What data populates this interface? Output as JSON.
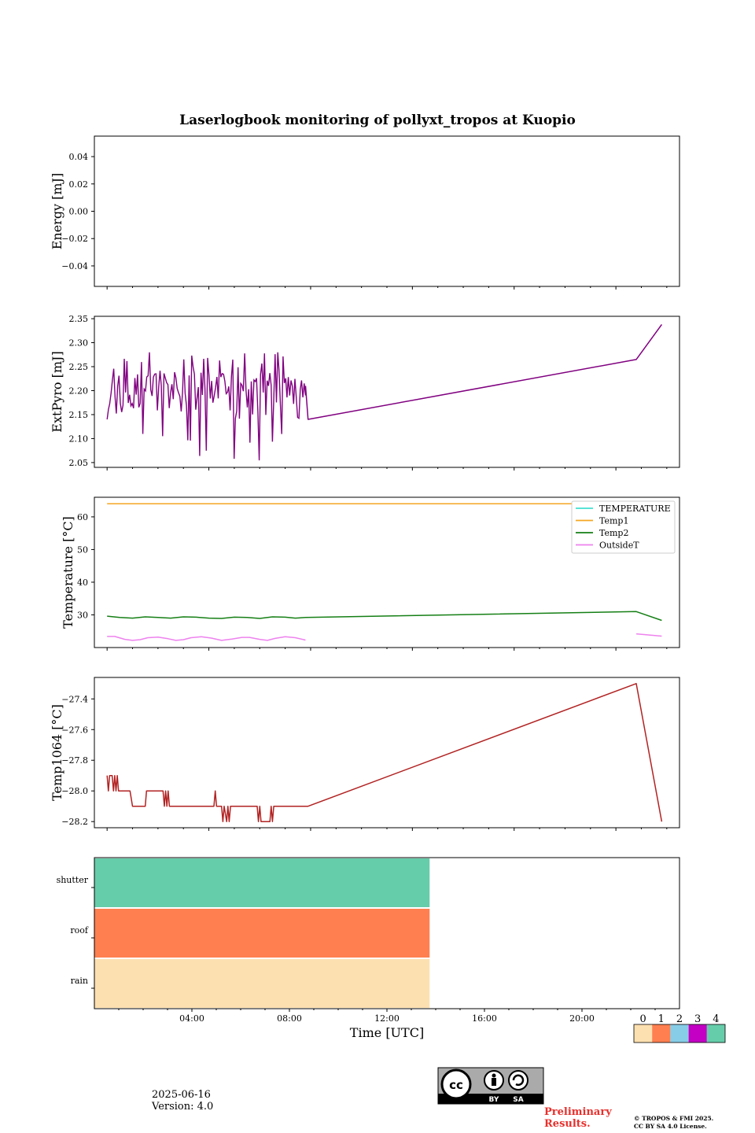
{
  "title": "Laserlogbook monitoring of pollyxt_tropos at Kuopio",
  "footer": {
    "date": "2025-06-16",
    "version": "Version: 4.0",
    "preliminary": [
      "Preliminary",
      "Results."
    ],
    "copyright": [
      "© TROPOS & FMI 2025.",
      "CC BY SA 4.0 License."
    ],
    "license_badge": {
      "labels": [
        "BY",
        "SA"
      ],
      "icon": "cc-by-sa-icon"
    }
  },
  "colorbar": {
    "ticks": [
      "0",
      "1",
      "2",
      "3",
      "4"
    ],
    "colors": [
      "#fde0b0",
      "#ff7f50",
      "#87cde8",
      "#c300c3",
      "#66cdaa"
    ]
  },
  "chart_data": [
    {
      "type": "line",
      "ylabel": "Energy [mJ]",
      "ylim": [
        -0.055,
        0.055
      ],
      "yticks": [
        -0.04,
        -0.02,
        0.0,
        0.02,
        0.04
      ],
      "ytick_labels": [
        "−0.04",
        "−0.02",
        "0.00",
        "0.02",
        "0.04"
      ],
      "series": []
    },
    {
      "type": "line",
      "ylabel": "ExtPyro [mJ]",
      "ylim": [
        2.04,
        2.355
      ],
      "yticks": [
        2.05,
        2.1,
        2.15,
        2.2,
        2.25,
        2.3,
        2.35
      ],
      "ytick_labels": [
        "2.05",
        "2.10",
        "2.15",
        "2.20",
        "2.25",
        "2.30",
        "2.35"
      ],
      "series": [
        {
          "color": "#800080",
          "noisy_segment": {
            "x_range": [
              1.0,
              8.8
            ],
            "y_range": [
              2.05,
              2.28
            ],
            "typical": 2.19
          },
          "points": [
            [
              8.8,
              2.21
            ],
            [
              8.9,
              2.14
            ],
            [
              21.8,
              2.265
            ],
            [
              22.8,
              2.338
            ]
          ]
        }
      ]
    },
    {
      "type": "line",
      "ylabel": "Temperature [°C]",
      "ylim": [
        20,
        66
      ],
      "yticks": [
        30,
        40,
        50,
        60
      ],
      "ytick_labels": [
        "30",
        "40",
        "50",
        "60"
      ],
      "legend_position": "top-right",
      "series": [
        {
          "name": "TEMPERATURE",
          "color": "#40e0d0",
          "points": []
        },
        {
          "name": "Temp1",
          "color": "#f5a623",
          "points": [
            [
              1.0,
              64.0
            ],
            [
              22.8,
              64.0
            ]
          ]
        },
        {
          "name": "Temp2",
          "color": "#157f15",
          "points": [
            [
              1.0,
              29.6
            ],
            [
              1.5,
              29.2
            ],
            [
              2.0,
              29.0
            ],
            [
              2.5,
              29.4
            ],
            [
              3.0,
              29.2
            ],
            [
              3.5,
              29.0
            ],
            [
              4.0,
              29.4
            ],
            [
              4.5,
              29.3
            ],
            [
              5.0,
              29.0
            ],
            [
              5.5,
              28.9
            ],
            [
              6.0,
              29.3
            ],
            [
              6.5,
              29.2
            ],
            [
              7.0,
              28.9
            ],
            [
              7.5,
              29.4
            ],
            [
              8.0,
              29.3
            ],
            [
              8.4,
              29.0
            ],
            [
              8.8,
              29.2
            ],
            [
              21.8,
              31.0
            ],
            [
              22.8,
              28.3
            ]
          ]
        },
        {
          "name": "OutsideT",
          "color": "#ee82ee",
          "segments": [
            [
              [
                1.0,
                23.4
              ],
              [
                1.3,
                23.4
              ],
              [
                1.7,
                22.5
              ],
              [
                2.0,
                22.2
              ],
              [
                2.3,
                22.4
              ],
              [
                2.6,
                23.0
              ],
              [
                3.0,
                23.2
              ],
              [
                3.4,
                22.7
              ],
              [
                3.7,
                22.2
              ],
              [
                4.0,
                22.4
              ],
              [
                4.3,
                23.0
              ],
              [
                4.7,
                23.3
              ],
              [
                5.1,
                22.9
              ],
              [
                5.5,
                22.2
              ],
              [
                5.9,
                22.6
              ],
              [
                6.3,
                23.1
              ],
              [
                6.6,
                23.1
              ],
              [
                7.0,
                22.5
              ],
              [
                7.3,
                22.2
              ],
              [
                7.6,
                22.8
              ],
              [
                8.0,
                23.3
              ],
              [
                8.4,
                23.0
              ],
              [
                8.8,
                22.3
              ]
            ],
            [
              [
                21.8,
                24.2
              ],
              [
                22.8,
                23.5
              ]
            ]
          ]
        }
      ]
    },
    {
      "type": "line",
      "ylabel": "Temp1064 [°C]",
      "ylim": [
        -28.24,
        -27.26
      ],
      "yticks": [
        -28.2,
        -28.0,
        -27.8,
        -27.6,
        -27.4
      ],
      "ytick_labels": [
        "−28.2",
        "−28.0",
        "−27.8",
        "−27.6",
        "−27.4"
      ],
      "series": [
        {
          "color": "#b22222",
          "points": [
            [
              1.0,
              -27.9
            ],
            [
              1.05,
              -28.0
            ],
            [
              1.1,
              -27.9
            ],
            [
              1.2,
              -27.9
            ],
            [
              1.25,
              -28.0
            ],
            [
              1.3,
              -27.9
            ],
            [
              1.35,
              -28.0
            ],
            [
              1.4,
              -27.9
            ],
            [
              1.45,
              -28.0
            ],
            [
              1.9,
              -28.0
            ],
            [
              2.0,
              -28.1
            ],
            [
              2.5,
              -28.1
            ],
            [
              2.55,
              -28.0
            ],
            [
              3.2,
              -28.0
            ],
            [
              3.25,
              -28.1
            ],
            [
              3.3,
              -28.0
            ],
            [
              3.35,
              -28.1
            ],
            [
              3.4,
              -28.0
            ],
            [
              3.45,
              -28.1
            ],
            [
              5.2,
              -28.1
            ],
            [
              5.25,
              -28.0
            ],
            [
              5.3,
              -28.1
            ],
            [
              5.5,
              -28.1
            ],
            [
              5.55,
              -28.2
            ],
            [
              5.6,
              -28.1
            ],
            [
              5.7,
              -28.2
            ],
            [
              5.75,
              -28.1
            ],
            [
              5.8,
              -28.2
            ],
            [
              5.85,
              -28.1
            ],
            [
              6.9,
              -28.1
            ],
            [
              6.95,
              -28.2
            ],
            [
              7.0,
              -28.1
            ],
            [
              7.05,
              -28.2
            ],
            [
              7.4,
              -28.2
            ],
            [
              7.45,
              -28.1
            ],
            [
              7.5,
              -28.2
            ],
            [
              7.55,
              -28.1
            ],
            [
              8.8,
              -28.1
            ],
            [
              8.9,
              -28.1
            ],
            [
              21.8,
              -27.3
            ],
            [
              22.8,
              -28.2
            ]
          ]
        }
      ]
    },
    {
      "type": "heatmap",
      "categories": [
        "rain",
        "roof",
        "shutter"
      ],
      "xlabel": "Time [UTC]",
      "xlim": [
        0,
        24
      ],
      "xticks": [
        4,
        8,
        12,
        16,
        20
      ],
      "xtick_labels": [
        "04:00",
        "08:00",
        "12:00",
        "16:00",
        "20:00"
      ],
      "rows": [
        {
          "name": "rain",
          "status": 0,
          "x_range": [
            0,
            13.75
          ]
        },
        {
          "name": "roof",
          "status": 1,
          "x_range": [
            0,
            13.75
          ]
        },
        {
          "name": "shutter",
          "status": 4,
          "x_range": [
            0,
            13.75
          ]
        }
      ]
    }
  ]
}
